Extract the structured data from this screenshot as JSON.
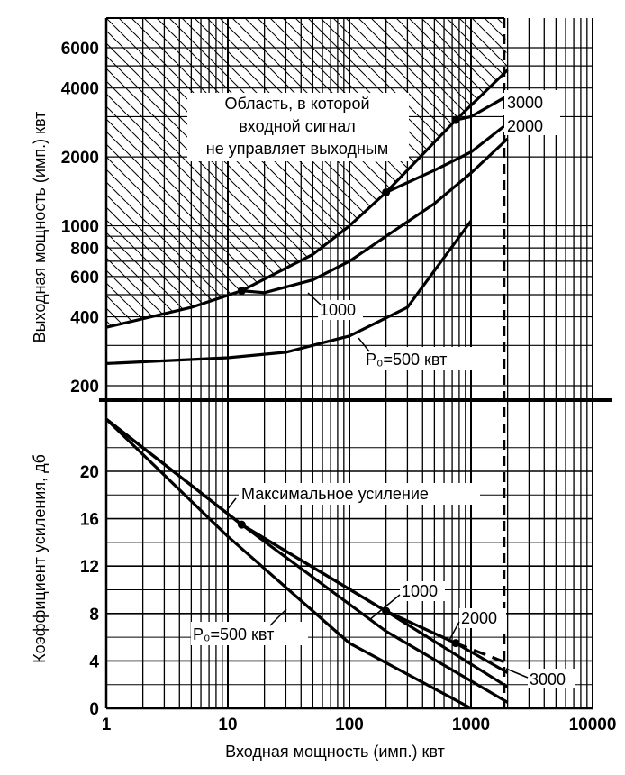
{
  "chart_data": [
    {
      "type": "line",
      "panel": "top",
      "title": "",
      "xlabel": "",
      "ylabel": "Выходная мощность (имп.) квт",
      "xscale": "log",
      "yscale": "log",
      "xlim": [
        1,
        10000
      ],
      "ylim": [
        200,
        7000
      ],
      "ytick_labels": [
        "200",
        "400",
        "600",
        "800",
        "1000",
        "2000",
        "4000",
        "6000"
      ],
      "grid": true,
      "hatched_region_label": "Область, в которой входной сигнал не управляет выходным",
      "series": [
        {
          "name": "P₀=500 квт",
          "x": [
            1,
            10,
            30,
            100,
            300,
            1000
          ],
          "y": [
            250,
            265,
            280,
            330,
            440,
            1050
          ]
        },
        {
          "name": "1000",
          "x": [
            13,
            20,
            50,
            100,
            200,
            500,
            1000,
            2000
          ],
          "y": [
            520,
            510,
            580,
            700,
            900,
            1250,
            1700,
            2400
          ]
        },
        {
          "name": "2000",
          "x": [
            200,
            500,
            1000,
            2000
          ],
          "y": [
            1400,
            1750,
            2100,
            2800
          ]
        },
        {
          "name": "3000",
          "x": [
            750,
            1000,
            2000
          ],
          "y": [
            2900,
            3000,
            3700
          ]
        },
        {
          "name": "",
          "x": [
            1,
            5,
            13,
            50,
            100,
            200,
            750,
            2000
          ],
          "y": [
            360,
            440,
            520,
            750,
            1000,
            1400,
            2900,
            4800
          ]
        }
      ]
    },
    {
      "type": "line",
      "panel": "bottom",
      "title": "",
      "xlabel": "Входная мощность (имп.) квт",
      "ylabel": "Коэффициент усиления, дб",
      "xscale": "log",
      "xlim": [
        1,
        10000
      ],
      "xtick_labels": [
        "1",
        "10",
        "100",
        "1000",
        "10000"
      ],
      "ylim": [
        0,
        24
      ],
      "ytick_labels": [
        "0",
        "4",
        "8",
        "12",
        "16",
        "20"
      ],
      "grid": true,
      "series": [
        {
          "name": "Максимальное усиление",
          "style": "dashed",
          "x": [
            1,
            13,
            200,
            750,
            2000
          ],
          "y": [
            24.4,
            15.5,
            8.2,
            5.5,
            3.8
          ]
        },
        {
          "name": "P₀=500 квт",
          "x": [
            1,
            10,
            100,
            1000
          ],
          "y": [
            24.4,
            14.5,
            5.5,
            0
          ]
        },
        {
          "name": "1000",
          "x": [
            1,
            13,
            200,
            2000
          ],
          "y": [
            24.4,
            15.5,
            6.5,
            0.5
          ]
        },
        {
          "name": "2000",
          "x": [
            1,
            13,
            200,
            2000
          ],
          "y": [
            24.4,
            15.5,
            8.2,
            1.8
          ]
        },
        {
          "name": "3000",
          "x": [
            1,
            13,
            200,
            750,
            2000
          ],
          "y": [
            24.4,
            15.5,
            8.2,
            5.5,
            3.0
          ]
        }
      ],
      "annotations": [
        "Максимальное усиление",
        "1000",
        "2000",
        "3000",
        "P₀=500 квт"
      ]
    }
  ]
}
